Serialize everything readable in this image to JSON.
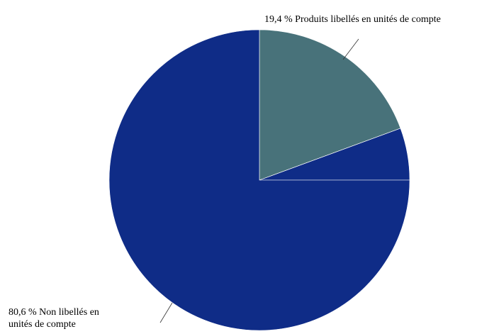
{
  "chart_data": {
    "type": "pie",
    "title": "",
    "start_angle_deg": 90,
    "direction": "clockwise",
    "slices": [
      {
        "value": 19.4,
        "label_lines": [
          "19,4 % Produits libellés en unités de compte"
        ],
        "color": "#48727a"
      },
      {
        "value": 5.6,
        "label_lines": [],
        "color": "#0f2c87"
      },
      {
        "value": 75.0,
        "label_lines": [],
        "color": "#0f2c87"
      }
    ],
    "annotations": [
      {
        "lines": [
          "80,6 % Non libellés en",
          "unités de compte"
        ]
      }
    ]
  }
}
